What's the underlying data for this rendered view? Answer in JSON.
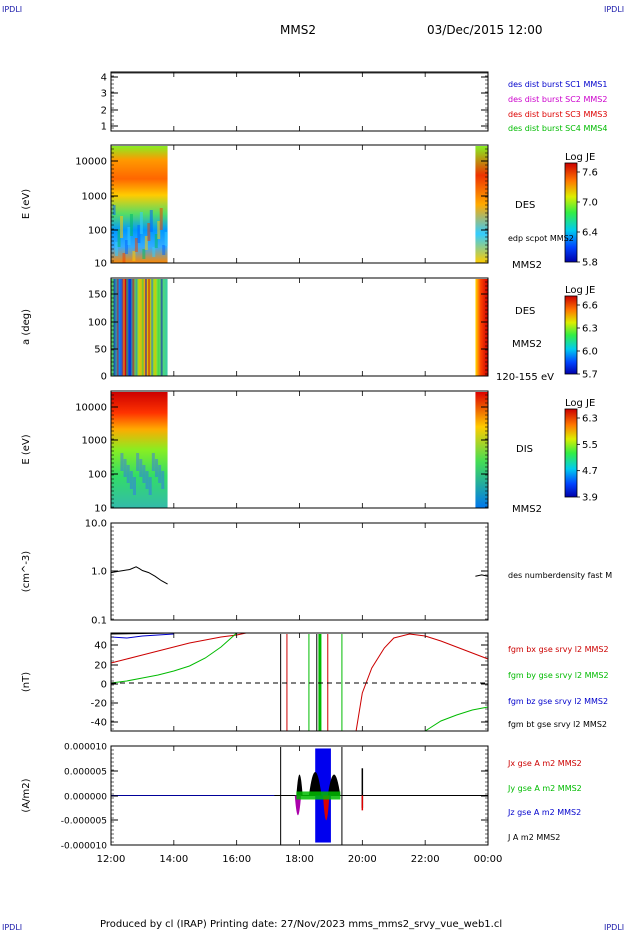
{
  "corner_labels": {
    "top_left": "IPDLI",
    "top_right": "IPDLI",
    "bottom_left": "IPDLI",
    "bottom_right": "IPDLI"
  },
  "header": {
    "spacecraft": "MMS2",
    "datetime": "03/Dec/2015 12:00"
  },
  "footer": {
    "text": "Produced by cl (IRAP)   Printing date: 27/Nov/2023   mms_mms2_srvy_vue_web1.cl"
  },
  "chart_data": [
    {
      "id": "sc-availability",
      "type": "line",
      "ylabel": "",
      "ytick_labels": [
        "4",
        "3",
        "2",
        "1"
      ],
      "legend": [
        {
          "label": "des dist burst SC1 MMS1",
          "color": "#0000cc"
        },
        {
          "label": "des dist burst SC2 MMS2",
          "color": "#cc00cc"
        },
        {
          "label": "des dist burst SC3 MMS3",
          "color": "#dd0000"
        },
        {
          "label": "des dist burst SC4 MMS4",
          "color": "#00bb00"
        }
      ]
    },
    {
      "id": "des-energy",
      "type": "heatmap",
      "ylabel": "E (eV)",
      "ytick_labels": [
        "10000",
        "1000",
        "100",
        "10"
      ],
      "yscale": "log",
      "ylim": [
        10,
        30000
      ],
      "side_labels": [
        "DES",
        "edp scpot MMS2",
        "MMS2"
      ],
      "colorbar": {
        "title": "Log JE",
        "ticks": [
          "7.6",
          "7.0",
          "6.4",
          "5.8"
        ],
        "range": [
          5.8,
          7.7
        ]
      },
      "coverage_hours": [
        [
          12.0,
          13.8
        ],
        [
          23.6,
          24.0
        ]
      ]
    },
    {
      "id": "des-pitch",
      "type": "heatmap",
      "ylabel": "a (deg)",
      "ytick_labels": [
        "150",
        "100",
        "50",
        "0"
      ],
      "ylim": [
        0,
        180
      ],
      "side_labels": [
        "DES",
        "MMS2",
        "120-155 eV"
      ],
      "colorbar": {
        "title": "Log JE",
        "ticks": [
          "6.6",
          "6.3",
          "6.0",
          "5.7"
        ],
        "range": [
          5.7,
          6.7
        ]
      },
      "coverage_hours": [
        [
          12.0,
          13.8
        ],
        [
          23.6,
          24.0
        ]
      ]
    },
    {
      "id": "dis-energy",
      "type": "heatmap",
      "ylabel": "E (eV)",
      "ytick_labels": [
        "10000",
        "1000",
        "100",
        "10"
      ],
      "yscale": "log",
      "ylim": [
        10,
        30000
      ],
      "side_labels": [
        "DIS",
        "MMS2"
      ],
      "colorbar": {
        "title": "Log JE",
        "ticks": [
          "6.3",
          "5.5",
          "4.7",
          "3.9"
        ],
        "range": [
          3.9,
          6.5
        ]
      },
      "coverage_hours": [
        [
          12.0,
          13.8
        ],
        [
          23.6,
          24.0
        ]
      ]
    },
    {
      "id": "density",
      "type": "line",
      "ylabel": "(cm^-3)",
      "ytick_labels": [
        "10.0",
        "1.0",
        "0.1"
      ],
      "yscale": "log",
      "ylim": [
        0.1,
        10
      ],
      "legend": [
        {
          "label": "des numberdensity fast M",
          "color": "#000000"
        }
      ],
      "series": [
        {
          "name": "des numberdensity fast M",
          "color": "#000000",
          "x": [
            12.0,
            12.2,
            12.4,
            12.6,
            12.8,
            12.9,
            13.0,
            13.2,
            13.4,
            13.6,
            13.8
          ],
          "y": [
            0.95,
            1.0,
            1.05,
            1.1,
            1.25,
            1.15,
            1.05,
            0.95,
            0.8,
            0.65,
            0.55
          ]
        },
        {
          "name": "des numberdensity fast M (late)",
          "color": "#000000",
          "x": [
            23.6,
            23.8,
            24.0
          ],
          "y": [
            0.8,
            0.85,
            0.8
          ]
        }
      ]
    },
    {
      "id": "fgm-b",
      "type": "line",
      "ylabel": "(nT)",
      "ytick_labels": [
        "40",
        "20",
        "0",
        "-20",
        "-40"
      ],
      "ylim": [
        -48,
        50
      ],
      "legend": [
        {
          "label": "fgm bx gse srvy l2 MMS2",
          "color": "#cc0000"
        },
        {
          "label": "fgm by gse srvy l2 MMS2",
          "color": "#00bb00"
        },
        {
          "label": "fgm bz gse srvy l2 MMS2",
          "color": "#0000cc"
        },
        {
          "label": "fgm bt gse srvy l2 MMS2",
          "color": "#000000"
        }
      ],
      "series": [
        {
          "name": "fgm bx gse srvy l2 MMS2",
          "color": "#cc0000",
          "x": [
            12.0,
            12.5,
            13.0,
            13.5,
            14.0,
            14.5,
            15.0,
            15.5,
            16.0,
            16.3
          ],
          "y": [
            20,
            24,
            28,
            32,
            36,
            40,
            43,
            46,
            48,
            50
          ]
        },
        {
          "name": "fgm bx gse srvy l2 MMS2 (late)",
          "color": "#cc0000",
          "x": [
            19.8,
            20.0,
            20.3,
            20.7,
            21.0,
            21.5,
            22.0,
            22.5,
            23.0,
            23.5,
            24.0
          ],
          "y": [
            -48,
            -10,
            15,
            35,
            45,
            49,
            47,
            42,
            36,
            30,
            24
          ]
        },
        {
          "name": "fgm by gse srvy l2 MMS2",
          "color": "#00bb00",
          "x": [
            12.0,
            12.5,
            13.0,
            13.5,
            14.0,
            14.5,
            15.0,
            15.5,
            16.0
          ],
          "y": [
            0,
            2,
            5,
            8,
            12,
            17,
            25,
            36,
            50
          ]
        },
        {
          "name": "fgm by gse srvy l2 MMS2 (late)",
          "color": "#00bb00",
          "x": [
            22.0,
            22.5,
            23.0,
            23.5,
            24.0
          ],
          "y": [
            -48,
            -38,
            -32,
            -27,
            -24
          ]
        },
        {
          "name": "fgm bz gse srvy l2 MMS2",
          "color": "#0000cc",
          "x": [
            12.0,
            12.5,
            13.0,
            13.5,
            14.0
          ],
          "y": [
            46,
            45,
            47,
            48,
            49
          ]
        },
        {
          "name": "fgm bt gse srvy l2 MMS2",
          "color": "#000000",
          "x": [
            12.0,
            14.0
          ],
          "y": [
            49,
            50
          ]
        }
      ]
    },
    {
      "id": "current-density",
      "type": "line",
      "ylabel": "(A/m2)",
      "ytick_labels": [
        "0.000010",
        "0.000005",
        "0.000000",
        "-0.000005",
        "-0.000010"
      ],
      "ylim": [
        -1e-05,
        1e-05
      ],
      "legend": [
        {
          "label": "Jx gse A m2 MMS2",
          "color": "#cc0000"
        },
        {
          "label": "Jy gse A m2 MMS2",
          "color": "#00bb00"
        },
        {
          "label": "Jz gse A m2 MMS2",
          "color": "#0000cc"
        },
        {
          "label": "J A m2 MMS2",
          "color": "#000000"
        }
      ]
    }
  ],
  "x_axis": {
    "tick_labels": [
      "12:00",
      "14:00",
      "16:00",
      "18:00",
      "20:00",
      "22:00",
      "00:00"
    ],
    "tick_hours": [
      12,
      14,
      16,
      18,
      20,
      22,
      24
    ]
  }
}
